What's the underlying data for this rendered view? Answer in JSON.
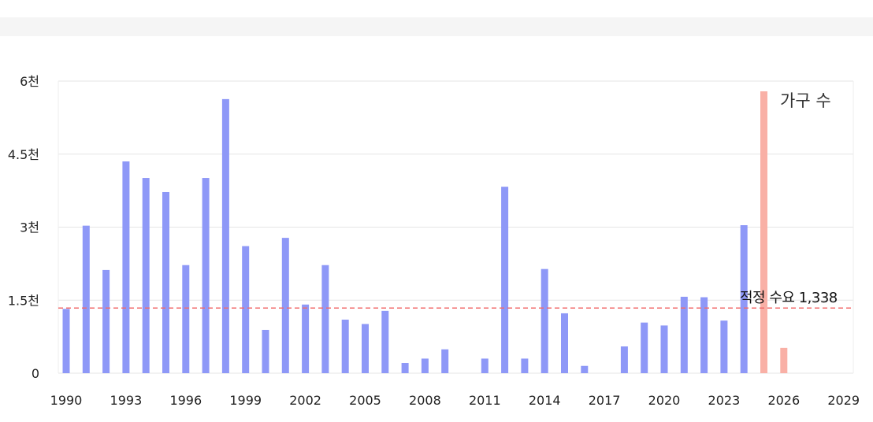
{
  "chart_data": {
    "type": "bar",
    "legend": "가구 수",
    "threshold": {
      "label": "적정 수요",
      "value": 1338,
      "value_text": "1,338",
      "color": "#f26b6b"
    },
    "y_ticks": [
      {
        "value": 0,
        "label": "0"
      },
      {
        "value": 1500,
        "label": "1.5천"
      },
      {
        "value": 3000,
        "label": "3천"
      },
      {
        "value": 4500,
        "label": "4.5천"
      },
      {
        "value": 6000,
        "label": "6천"
      }
    ],
    "ylim": [
      0,
      6000
    ],
    "xlim": [
      1990,
      2029
    ],
    "x_ticks": [
      1990,
      1993,
      1996,
      1999,
      2002,
      2005,
      2008,
      2011,
      2014,
      2017,
      2020,
      2023,
      2026,
      2029
    ],
    "grid": true,
    "colors": {
      "past": "#8e98f7",
      "future": "#f9b0a6"
    },
    "series": [
      {
        "kind": "past",
        "x": [
          1990,
          1991,
          1992,
          1993,
          1994,
          1995,
          1996,
          1997,
          1998,
          1999,
          2000,
          2001,
          2002,
          2003,
          2004,
          2005,
          2006,
          2007,
          2008,
          2009,
          2011,
          2012,
          2013,
          2014,
          2015,
          2016,
          2018,
          2019,
          2020,
          2021,
          2022,
          2023,
          2024
        ],
        "values": [
          1320,
          3030,
          2120,
          4350,
          4010,
          3720,
          2220,
          4010,
          5630,
          2610,
          890,
          2780,
          1410,
          2220,
          1100,
          1010,
          1280,
          210,
          300,
          490,
          300,
          3830,
          300,
          2140,
          1230,
          150,
          550,
          1040,
          980,
          1570,
          1560,
          1080,
          3040
        ]
      },
      {
        "kind": "future",
        "x": [
          2025,
          2026
        ],
        "values": [
          5790,
          520
        ]
      }
    ]
  }
}
